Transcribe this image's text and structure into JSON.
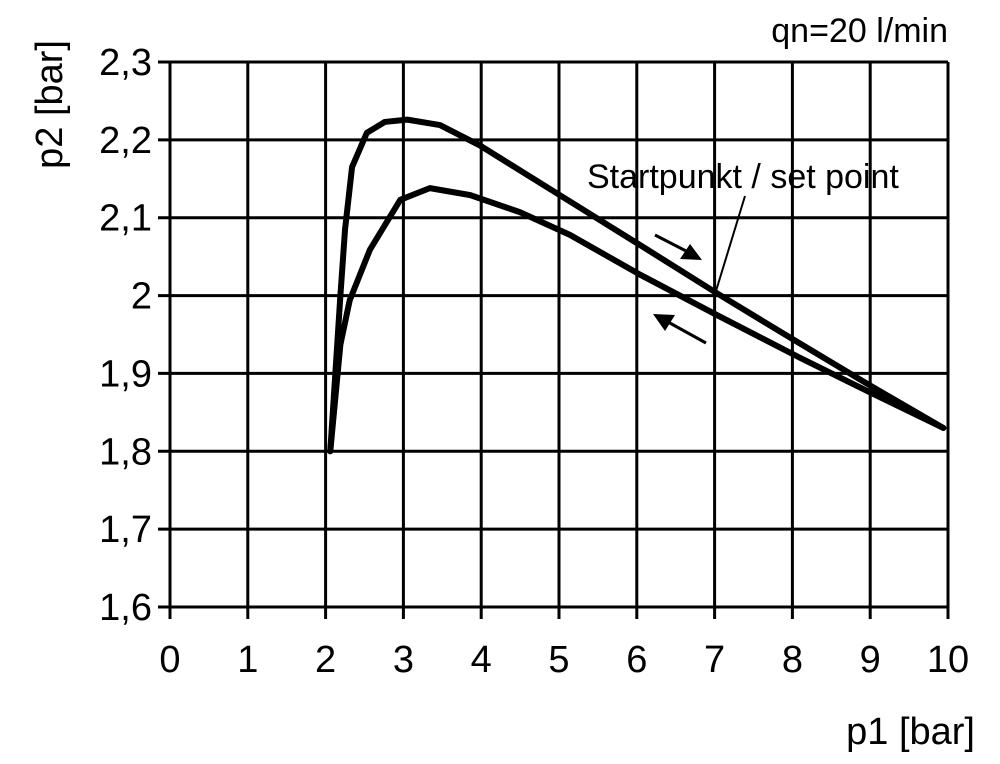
{
  "chart_data": {
    "type": "line",
    "title": "",
    "annotation_top_right": "qn=20 l/min",
    "xlabel": "p1 [bar]",
    "ylabel": "p2 [bar]",
    "xlim": [
      0,
      10
    ],
    "ylim": [
      1.6,
      2.3
    ],
    "grid": true,
    "x_ticks": [
      0,
      1,
      2,
      3,
      4,
      5,
      6,
      7,
      8,
      9,
      10
    ],
    "x_tick_labels": [
      "0",
      "1",
      "2",
      "3",
      "4",
      "5",
      "6",
      "7",
      "8",
      "9",
      "10"
    ],
    "y_ticks": [
      1.6,
      1.7,
      1.8,
      1.9,
      2.0,
      2.1,
      2.2,
      2.3
    ],
    "y_tick_labels": [
      "1,6",
      "1,7",
      "1,8",
      "1,9",
      "2",
      "2,1",
      "2,2",
      "2,3"
    ],
    "set_point_label": "Startpunkt / set point",
    "set_point": [
      7,
      2.0
    ],
    "line_color": "#000000",
    "series": [
      {
        "x": [
          2.06,
          2.12,
          2.19,
          2.25,
          2.34,
          2.53,
          2.76,
          3.05,
          3.47,
          3.98,
          5.01,
          6.04,
          7.03,
          7.97,
          8.99,
          9.94
        ],
        "y": [
          1.8,
          1.892,
          2.0,
          2.085,
          2.165,
          2.209,
          2.223,
          2.226,
          2.219,
          2.193,
          2.129,
          2.065,
          2.003,
          1.946,
          1.885,
          1.83
        ]
      },
      {
        "x": [
          2.06,
          2.19,
          2.31,
          2.57,
          2.96,
          3.34,
          3.86,
          4.5,
          5.14,
          6.04,
          7.03,
          8.1,
          8.99,
          9.94
        ],
        "y": [
          1.8,
          1.937,
          1.994,
          2.059,
          2.123,
          2.138,
          2.129,
          2.107,
          2.078,
          2.027,
          1.975,
          1.92,
          1.876,
          1.83
        ]
      }
    ]
  }
}
